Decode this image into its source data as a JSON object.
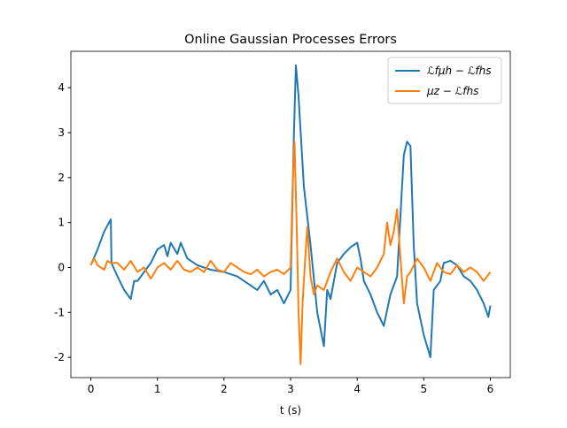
{
  "chart_data": {
    "type": "line",
    "title": "Online Gaussian Processes Errors",
    "xlabel": "t (s)",
    "xlim": [
      -0.3,
      6.3
    ],
    "ylim": [
      -2.45,
      4.81
    ],
    "xticks": [
      0,
      1,
      2,
      3,
      4,
      5,
      6
    ],
    "yticks": [
      -2,
      -1,
      0,
      1,
      2,
      3,
      4
    ],
    "legend": "upper right",
    "series": [
      {
        "name": "ℒfμh − ℒfhs",
        "color": "#1f77b4",
        "x": [
          0,
          0.1,
          0.2,
          0.3,
          0.31,
          0.4,
          0.5,
          0.6,
          0.65,
          0.7,
          0.8,
          0.9,
          1.0,
          1.1,
          1.15,
          1.2,
          1.3,
          1.35,
          1.45,
          1.6,
          1.8,
          2.0,
          2.2,
          2.4,
          2.5,
          2.6,
          2.7,
          2.8,
          2.9,
          3.0,
          3.05,
          3.08,
          3.12,
          3.2,
          3.3,
          3.4,
          3.5,
          3.55,
          3.6,
          3.7,
          3.8,
          3.9,
          4.0,
          4.05,
          4.1,
          4.2,
          4.3,
          4.4,
          4.5,
          4.6,
          4.7,
          4.75,
          4.8,
          4.85,
          4.9,
          5.0,
          5.1,
          5.15,
          5.25,
          5.3,
          5.4,
          5.5,
          5.6,
          5.7,
          5.8,
          5.9,
          5.97,
          6.0
        ],
        "values": [
          0.05,
          0.4,
          0.8,
          1.07,
          0.1,
          -0.2,
          -0.5,
          -0.7,
          -0.3,
          -0.3,
          -0.1,
          0.1,
          0.4,
          0.5,
          0.25,
          0.55,
          0.3,
          0.55,
          0.2,
          0.05,
          -0.05,
          -0.1,
          -0.2,
          -0.4,
          -0.5,
          -0.3,
          -0.6,
          -0.5,
          -0.8,
          -0.5,
          3.0,
          4.5,
          3.8,
          1.8,
          0.5,
          -1.0,
          -1.75,
          -0.5,
          -0.7,
          0.1,
          0.3,
          0.45,
          0.55,
          0.2,
          -0.3,
          -0.6,
          -1.0,
          -1.3,
          -0.6,
          -0.2,
          2.5,
          2.8,
          2.7,
          0.5,
          -0.8,
          -1.5,
          -2.0,
          -0.5,
          -0.3,
          0.1,
          0.15,
          0.05,
          -0.2,
          -0.3,
          -0.5,
          -0.8,
          -1.1,
          -0.85
        ]
      },
      {
        "name": "μz − ℒfhs",
        "color": "#ff7f0e",
        "x": [
          0,
          0.05,
          0.1,
          0.2,
          0.25,
          0.3,
          0.4,
          0.5,
          0.6,
          0.7,
          0.8,
          0.9,
          1.0,
          1.1,
          1.2,
          1.3,
          1.4,
          1.5,
          1.6,
          1.7,
          1.8,
          1.9,
          2.0,
          2.1,
          2.2,
          2.3,
          2.4,
          2.5,
          2.6,
          2.7,
          2.8,
          2.9,
          3.0,
          3.03,
          3.06,
          3.09,
          3.12,
          3.15,
          3.18,
          3.22,
          3.25,
          3.3,
          3.35,
          3.4,
          3.5,
          3.6,
          3.7,
          3.8,
          3.9,
          4.0,
          4.1,
          4.2,
          4.3,
          4.4,
          4.45,
          4.5,
          4.55,
          4.6,
          4.65,
          4.7,
          4.75,
          4.8,
          4.9,
          5.0,
          5.1,
          5.2,
          5.3,
          5.4,
          5.5,
          5.6,
          5.7,
          5.8,
          5.9,
          6.0
        ],
        "values": [
          0.05,
          0.2,
          0.05,
          -0.05,
          0.15,
          0.1,
          0.1,
          -0.05,
          0.15,
          -0.1,
          0.0,
          -0.25,
          0.0,
          0.1,
          -0.05,
          0.15,
          -0.05,
          -0.1,
          0.0,
          -0.1,
          0.15,
          -0.05,
          -0.1,
          0.1,
          0.0,
          -0.1,
          -0.15,
          -0.05,
          -0.2,
          -0.1,
          -0.05,
          -0.15,
          0.0,
          1.8,
          2.8,
          1.0,
          -1.0,
          -2.15,
          -0.8,
          0.2,
          0.9,
          -0.2,
          -0.6,
          -0.4,
          -0.5,
          -0.1,
          0.2,
          -0.1,
          -0.3,
          0.0,
          -0.1,
          -0.2,
          0.0,
          0.3,
          1.0,
          0.5,
          0.8,
          1.3,
          0.2,
          -0.8,
          -0.2,
          -0.1,
          0.2,
          0.0,
          -0.3,
          0.1,
          -0.1,
          -0.15,
          0.05,
          -0.1,
          0.0,
          -0.1,
          -0.3,
          -0.1
        ]
      }
    ]
  }
}
